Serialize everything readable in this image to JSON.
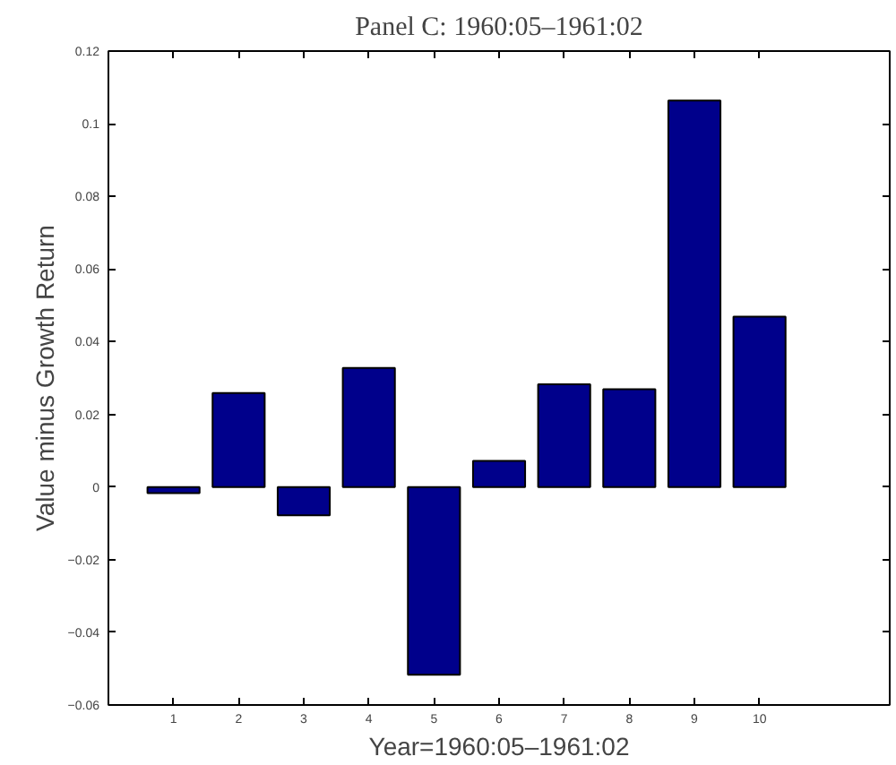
{
  "chart_data": {
    "type": "bar",
    "title": "Panel C: 1960:05–1961:02",
    "xlabel": "Year=1960:05–1961:02",
    "ylabel": "Value minus Growth Return",
    "x": [
      1,
      2,
      3,
      4,
      5,
      6,
      7,
      8,
      9,
      10
    ],
    "values": [
      -0.0017,
      0.0259,
      -0.0078,
      0.0328,
      -0.0517,
      0.0072,
      0.0283,
      0.0269,
      0.1064,
      0.0469
    ],
    "color": "#00008b",
    "xlim": [
      0,
      12
    ],
    "xticks": [
      1,
      2,
      3,
      4,
      5,
      6,
      7,
      8,
      9,
      10
    ],
    "ylim": [
      -0.06,
      0.12
    ],
    "yticks": [
      -0.06,
      -0.04,
      -0.02,
      0,
      0.02,
      0.04,
      0.06,
      0.08,
      0.1,
      0.12
    ],
    "grid": false
  }
}
